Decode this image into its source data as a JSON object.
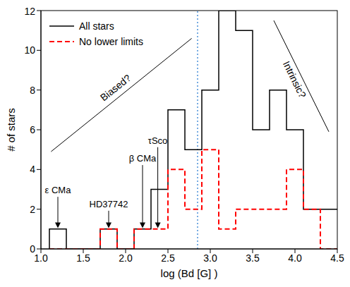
{
  "chart_data": {
    "type": "histogram",
    "x_label": "log (Bd [G] )",
    "y_label": "# of stars",
    "bins": [
      1.1,
      1.3,
      1.5,
      1.7,
      1.9,
      2.1,
      2.3,
      2.5,
      2.7,
      2.9,
      3.1,
      3.3,
      3.5,
      3.7,
      3.9,
      4.1,
      4.3,
      4.5
    ],
    "series": [
      {
        "name": "All stars",
        "color": "#000000",
        "line_style": "solid",
        "values": [
          1,
          0,
          0,
          1,
          0,
          1,
          3,
          7,
          5,
          8,
          12,
          11,
          6,
          8,
          6,
          2,
          2
        ]
      },
      {
        "name": "No lower limits",
        "color": "#ff0000",
        "line_style": "dashed",
        "values": [
          0,
          0,
          0,
          1,
          0,
          1,
          1,
          4,
          2,
          5,
          1,
          2,
          2,
          2,
          4,
          2,
          0
        ]
      }
    ],
    "xlim": [
      1.0,
      4.5
    ],
    "xticks": [
      {
        "value": 1.0,
        "label": "1.0"
      },
      {
        "value": 1.5,
        "label": "1.5"
      },
      {
        "value": 2.0,
        "label": "2.0"
      },
      {
        "value": 2.5,
        "label": "2.5"
      },
      {
        "value": 3.0,
        "label": "3.0"
      },
      {
        "value": 3.5,
        "label": "3.5"
      },
      {
        "value": 4.0,
        "label": "4.0"
      },
      {
        "value": 4.5,
        "label": "4.5"
      }
    ],
    "ylim": [
      0,
      12
    ],
    "yticks": [
      0,
      2,
      4,
      6,
      8,
      10,
      12
    ],
    "legend": "upper left",
    "reference_line": {
      "x": 2.85,
      "color": "#4a90d9",
      "line_style": "dotted"
    },
    "annotations": [
      {
        "text": "ε CMa",
        "x": 1.2,
        "y": 2.8,
        "arrow_y": 1.05
      },
      {
        "text": "HD37742",
        "x": 1.8,
        "y": 2.1,
        "arrow_y": 1.05
      },
      {
        "text": "β CMa",
        "x": 2.2,
        "y": 4.4,
        "arrow_y": 1.05
      },
      {
        "text": "τSco",
        "x": 2.38,
        "y": 5.3,
        "arrow_y": 1.05
      }
    ],
    "trend_lines": [
      {
        "text": "Biased?",
        "x": [
          1.12,
          2.78
        ],
        "y": [
          4.9,
          10.6
        ]
      },
      {
        "text": "Intrinsic?",
        "x": [
          3.75,
          4.4
        ],
        "y": [
          11.5,
          5.9
        ]
      }
    ]
  }
}
